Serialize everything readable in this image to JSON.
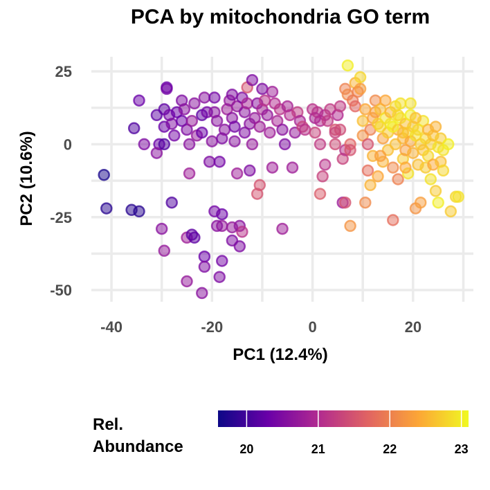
{
  "chart_data": {
    "type": "scatter",
    "title": "PCA by mitochondria GO term",
    "xlabel": "PC1 (12.4%)",
    "ylabel": "PC2 (10.6%)",
    "xlim": [
      -44,
      32
    ],
    "ylim": [
      -54,
      30
    ],
    "x_ticks": [
      -40,
      -20,
      0,
      20
    ],
    "y_ticks": [
      25,
      0,
      -25,
      -50
    ],
    "x_tick_labels": [
      "-40",
      "-20",
      "0",
      "20"
    ],
    "y_tick_labels": [
      "25",
      "0",
      "-25",
      "-50"
    ],
    "grid": true,
    "legend": {
      "title_lines": [
        "Rel.",
        "Abundance"
      ],
      "position": "bottom",
      "ticks": [
        20,
        21,
        22,
        23
      ],
      "tick_labels": [
        "20",
        "21",
        "22",
        "23"
      ],
      "range": [
        19.6,
        23.1
      ],
      "colors": [
        "#0d0887",
        "#6a00a8",
        "#b12a90",
        "#e16462",
        "#fca636",
        "#f0f921"
      ]
    },
    "points": [
      [
        -41.5,
        -10.5,
        19.7
      ],
      [
        -41,
        -22,
        19.8
      ],
      [
        -36,
        -22.5,
        19.8
      ],
      [
        -34.5,
        -23,
        19.8
      ],
      [
        -35.5,
        5.5,
        20.1
      ],
      [
        -34.5,
        15,
        20.3
      ],
      [
        -33.5,
        0,
        20.5
      ],
      [
        -30,
        -29,
        20.6
      ],
      [
        -29.5,
        -36.5,
        20.7
      ],
      [
        -28,
        -20,
        20.1
      ],
      [
        -30.5,
        0,
        20.3
      ],
      [
        -31,
        10,
        20.2
      ],
      [
        -31,
        -3,
        20.6
      ],
      [
        -29.5,
        6,
        20.3
      ],
      [
        -29.5,
        12,
        20.2
      ],
      [
        -29,
        19.5,
        20.3
      ],
      [
        -29,
        19,
        20.4
      ],
      [
        -28.5,
        10,
        20.4
      ],
      [
        -28,
        7,
        20.5
      ],
      [
        -27.5,
        3,
        20.4
      ],
      [
        -27,
        11,
        20.3
      ],
      [
        -26,
        15,
        20.5
      ],
      [
        -26,
        8,
        20.3
      ],
      [
        -25.5,
        12,
        20.6
      ],
      [
        -25,
        5,
        20.5
      ],
      [
        -24.5,
        0,
        20.6
      ],
      [
        -24.5,
        -10,
        20.8
      ],
      [
        -24,
        8,
        20.7
      ],
      [
        -23.5,
        14,
        20.6
      ],
      [
        -23,
        3,
        20.7
      ],
      [
        -25,
        -32,
        20.8
      ],
      [
        -24,
        -31,
        20.2
      ],
      [
        -23.5,
        -32,
        20.2
      ],
      [
        -22,
        4,
        20.3
      ],
      [
        -22,
        10,
        20.2
      ],
      [
        -21.5,
        16,
        20.6
      ],
      [
        -21,
        11,
        20.4
      ],
      [
        -20.5,
        -6,
        20.5
      ],
      [
        -20,
        1,
        20.6
      ],
      [
        -19.5,
        11,
        20.6
      ],
      [
        -19.5,
        16,
        20.4
      ],
      [
        -19,
        8,
        20.6
      ],
      [
        -18.5,
        -6,
        20.4
      ],
      [
        -18,
        -24,
        20.3
      ],
      [
        -18,
        -40,
        20.4
      ],
      [
        -18.5,
        -45.5,
        20.5
      ],
      [
        -21.5,
        -38.5,
        20.3
      ],
      [
        -21.5,
        -42,
        20.5
      ],
      [
        -22,
        -51,
        20.6
      ],
      [
        -25,
        -47,
        20.7
      ],
      [
        -18,
        2,
        20.5
      ],
      [
        -17.5,
        5,
        20.6
      ],
      [
        -17,
        12,
        20.8
      ],
      [
        -16.5,
        15,
        20.7
      ],
      [
        -16,
        9,
        20.6
      ],
      [
        -16,
        17,
        20.5
      ],
      [
        -15.5,
        1,
        20.6
      ],
      [
        -15.5,
        6,
        20.4
      ],
      [
        -15,
        13,
        20.7
      ],
      [
        -15,
        -10,
        20.8
      ],
      [
        -14.5,
        -28,
        20.6
      ],
      [
        -14.5,
        -35,
        20.5
      ],
      [
        -14,
        -30,
        21.1
      ],
      [
        -14,
        16,
        20.5
      ],
      [
        -13.5,
        4,
        20.5
      ],
      [
        -13.5,
        11,
        20.6
      ],
      [
        -13,
        19.5,
        21.5
      ],
      [
        -13,
        14,
        20.9
      ],
      [
        -12.5,
        -9,
        20.5
      ],
      [
        -12.5,
        7,
        20.6
      ],
      [
        -12,
        0,
        20.7
      ],
      [
        -12,
        22,
        20.5
      ],
      [
        -11.5,
        9,
        20.7
      ],
      [
        -11,
        14,
        20.6
      ],
      [
        -11,
        -17,
        21.5
      ],
      [
        -10.5,
        -14,
        21.5
      ],
      [
        -10.5,
        6,
        20.8
      ],
      [
        -10,
        19,
        20.5
      ],
      [
        -10,
        12,
        20.9
      ],
      [
        -9.5,
        15,
        21.1
      ],
      [
        -9,
        10,
        20.7
      ],
      [
        -8.5,
        4,
        20.8
      ],
      [
        -8,
        -8,
        20.8
      ],
      [
        -8,
        18,
        20.8
      ],
      [
        -7.5,
        14,
        21.0
      ],
      [
        -7,
        8,
        20.9
      ],
      [
        -6.5,
        12,
        21.1
      ],
      [
        -6,
        5,
        20.6
      ],
      [
        -6,
        -29,
        20.8
      ],
      [
        -5.5,
        0,
        20.5
      ],
      [
        -5,
        13,
        20.9
      ],
      [
        -4.5,
        10,
        21.0
      ],
      [
        -4,
        -8,
        20.8
      ],
      [
        -3.5,
        4,
        20.7
      ],
      [
        -3,
        11,
        21.2
      ],
      [
        -2.5,
        8,
        20.9
      ],
      [
        -2,
        6,
        21.3
      ],
      [
        -1.5,
        5,
        21.1
      ],
      [
        -16,
        -28.5,
        20.7
      ],
      [
        -18,
        -28,
        20.7
      ],
      [
        -16,
        -33,
        20.5
      ],
      [
        -19,
        -28,
        20.6
      ],
      [
        -19.5,
        -23,
        20.4
      ],
      [
        -29.5,
        0,
        20.1
      ],
      [
        0,
        12,
        21.1
      ],
      [
        0.5,
        9,
        20.9
      ],
      [
        0.5,
        4,
        21.3
      ],
      [
        1,
        11,
        21.1
      ],
      [
        1.5,
        8,
        21.0
      ],
      [
        1.5,
        0,
        21.2
      ],
      [
        2.5,
        10,
        21.0
      ],
      [
        1.5,
        -17,
        21.6
      ],
      [
        3,
        8,
        21.2
      ],
      [
        3.5,
        12,
        21.2
      ],
      [
        4.5,
        5,
        21.5
      ],
      [
        4.5,
        0,
        21.4
      ],
      [
        4.5,
        4,
        21.3
      ],
      [
        5,
        10,
        21.0
      ],
      [
        5.5,
        5,
        21.4
      ],
      [
        5.5,
        13,
        21.2
      ],
      [
        2,
        -11,
        21.3
      ],
      [
        2.5,
        -7,
        21.1
      ],
      [
        6,
        -20,
        20.8
      ],
      [
        6,
        -5,
        21.3
      ],
      [
        6.5,
        -2,
        21.1
      ],
      [
        6.5,
        -20,
        21.5
      ],
      [
        6.5,
        19,
        22.0
      ],
      [
        7,
        17,
        22.1
      ],
      [
        7,
        27,
        23.0
      ],
      [
        7.5,
        -28,
        22.2
      ],
      [
        7.5,
        0,
        21.7
      ],
      [
        7.5,
        -2,
        21.5
      ],
      [
        8,
        15,
        21.9
      ],
      [
        8.5,
        13,
        21.7
      ],
      [
        8.5,
        21,
        22.5
      ],
      [
        9,
        18,
        22.0
      ],
      [
        9.5,
        19,
        22.3
      ],
      [
        9.5,
        23,
        22.8
      ],
      [
        10,
        3,
        22.2
      ],
      [
        10,
        8,
        22.6
      ],
      [
        10.5,
        12,
        22.4
      ],
      [
        10.5,
        -20,
        22.1
      ],
      [
        11,
        -9,
        21.8
      ],
      [
        11,
        0,
        21.5
      ],
      [
        11.5,
        -14,
        22.5
      ],
      [
        11.5,
        5,
        22.0
      ],
      [
        12,
        9,
        22.3
      ],
      [
        12,
        -4,
        22.5
      ],
      [
        12.5,
        15,
        22.1
      ],
      [
        12.5,
        11,
        22.3
      ],
      [
        13,
        7,
        22.7
      ],
      [
        13,
        -11,
        22.4
      ],
      [
        13.5,
        12,
        22.6
      ],
      [
        13.5,
        6,
        22.8
      ],
      [
        14,
        2,
        22.3
      ],
      [
        14,
        -6,
        22.5
      ],
      [
        14.5,
        9,
        22.9
      ],
      [
        14.5,
        15,
        22.4
      ],
      [
        15,
        4,
        22.7
      ],
      [
        15,
        -2,
        22.6
      ],
      [
        15.5,
        11,
        22.5
      ],
      [
        15.5,
        7,
        22.9
      ],
      [
        16,
        -8,
        22.1
      ],
      [
        16,
        -26,
        21.8
      ],
      [
        16.5,
        0,
        22.6
      ],
      [
        16.5,
        13,
        22.8
      ],
      [
        17,
        5,
        22.4
      ],
      [
        17,
        -12,
        22.0
      ],
      [
        17.5,
        9,
        23.0
      ],
      [
        17.5,
        14,
        22.9
      ],
      [
        18,
        2,
        22.5
      ],
      [
        18,
        -5,
        22.7
      ],
      [
        18.5,
        7,
        22.6
      ],
      [
        18.5,
        -2,
        22.3
      ],
      [
        19,
        4,
        22.8
      ],
      [
        19,
        -10,
        22.9
      ],
      [
        19.5,
        10,
        23.0
      ],
      [
        19.5,
        1,
        22.4
      ],
      [
        20,
        6,
        22.7
      ],
      [
        20,
        -3,
        22.5
      ],
      [
        20.5,
        3,
        22.9
      ],
      [
        20.5,
        -22,
        22.2
      ],
      [
        21,
        -7,
        22.6
      ],
      [
        21,
        5,
        22.8
      ],
      [
        21.5,
        0,
        22.7
      ],
      [
        21.5,
        -20,
        22.3
      ],
      [
        22,
        8,
        22.9
      ],
      [
        22,
        -2,
        22.6
      ],
      [
        22.5,
        2,
        22.8
      ],
      [
        22.5,
        -8,
        22.7
      ],
      [
        23,
        5,
        22.5
      ],
      [
        23,
        -4,
        22.8
      ],
      [
        23.5,
        0,
        22.7
      ],
      [
        23.5,
        -12,
        22.9
      ],
      [
        24,
        3,
        22.6
      ],
      [
        24,
        -7,
        22.4
      ],
      [
        24.5,
        -16,
        22.7
      ],
      [
        24.5,
        6,
        22.5
      ],
      [
        25,
        -1,
        22.9
      ],
      [
        25,
        -20,
        23.0
      ],
      [
        25.5,
        2,
        22.7
      ],
      [
        25.5,
        -6,
        22.6
      ],
      [
        26,
        -9,
        22.8
      ],
      [
        26,
        -2,
        22.9
      ],
      [
        27,
        0,
        23.0
      ],
      [
        27.5,
        -23,
        22.7
      ],
      [
        28.5,
        -18,
        22.8
      ],
      [
        29,
        -18,
        22.9
      ],
      [
        18,
        4,
        22.6
      ],
      [
        17,
        10,
        22.8
      ],
      [
        16,
        6,
        23.0
      ],
      [
        19.5,
        14,
        22.9
      ],
      [
        18.5,
        -8,
        22.4
      ],
      [
        20.5,
        9,
        22.6
      ],
      [
        13.5,
        -4,
        22.3
      ]
    ]
  }
}
